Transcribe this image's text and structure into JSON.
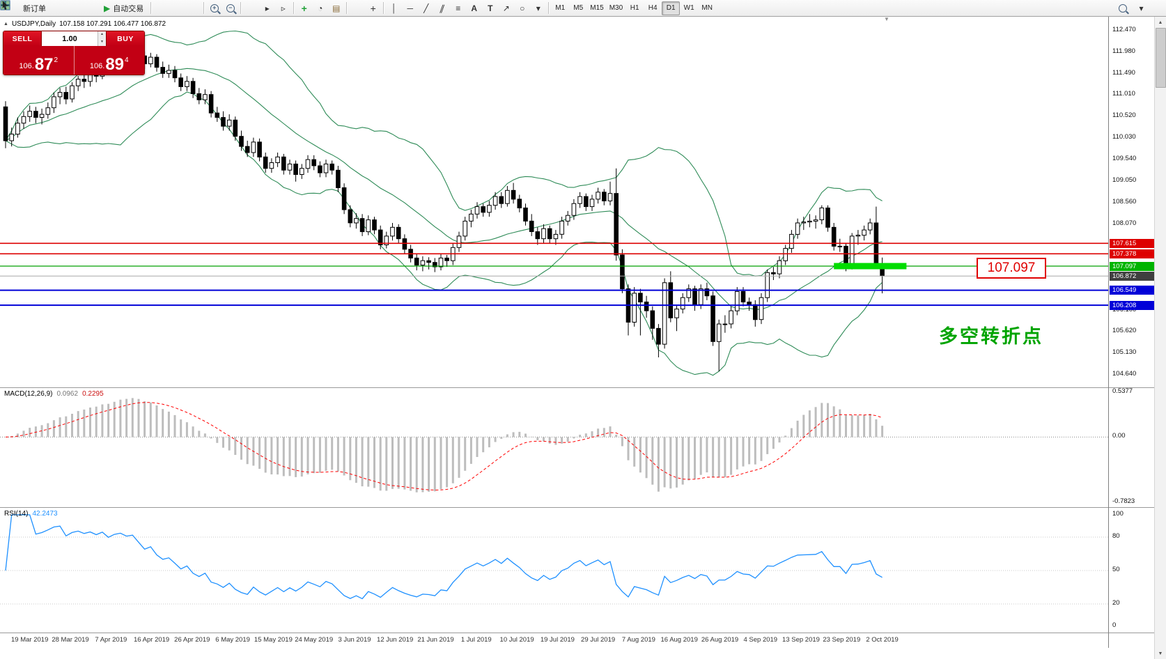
{
  "toolbar": {
    "new_order_label": "新订单",
    "autotrading_label": "自动交易",
    "timeframes": [
      "M1",
      "M5",
      "M15",
      "M30",
      "H1",
      "H4",
      "D1",
      "W1",
      "MN"
    ],
    "active_timeframe": "D1"
  },
  "icons": {
    "collapse_arrow": "▲",
    "autotrading_play": "▶",
    "spinner_up": "▲",
    "spinner_down": "▼",
    "scroll_up": "▲",
    "scroll_down": "▼",
    "shift_marker": "▼",
    "zoom_in": "+",
    "zoom_out": "−",
    "auto_scroll": "▸",
    "chart_shift": "▹",
    "indicators": "+",
    "periods": "◔",
    "templates": "▤",
    "crosshair": "+",
    "vline": "│",
    "hline": "─",
    "trendline": "╱",
    "channel": "∥",
    "fibonacci": "≡",
    "text": "A",
    "label": "T",
    "arrows": "↗",
    "shapes": "○",
    "dropdown": "▾"
  },
  "chart": {
    "header": "USDJPY,Daily",
    "ohlc": "107.158 107.291 106.477 106.872",
    "one_click": {
      "sell_label": "SELL",
      "buy_label": "BUY",
      "volume": "1.00",
      "sell_price": {
        "base": "106.",
        "big": "87",
        "sup": "2"
      },
      "buy_price": {
        "base": "106.",
        "big": "89",
        "sup": "4"
      }
    },
    "annotations": {
      "level_label": "107.097",
      "note": "多空转折点"
    }
  },
  "price_axis": {
    "gridlines": [
      {
        "label": "112.470",
        "price": 112.47
      },
      {
        "label": "111.980",
        "price": 111.98
      },
      {
        "label": "111.490",
        "price": 111.49
      },
      {
        "label": "111.010",
        "price": 111.01
      },
      {
        "label": "110.520",
        "price": 110.52
      },
      {
        "label": "110.030",
        "price": 110.03
      },
      {
        "label": "109.540",
        "price": 109.54
      },
      {
        "label": "109.050",
        "price": 109.05
      },
      {
        "label": "108.560",
        "price": 108.56
      },
      {
        "label": "108.070",
        "price": 108.07
      },
      {
        "label": "106.100",
        "price": 106.1
      },
      {
        "label": "105.620",
        "price": 105.62
      },
      {
        "label": "105.130",
        "price": 105.13
      },
      {
        "label": "104.640",
        "price": 104.64
      }
    ],
    "badges": [
      {
        "label": "107.615",
        "price": 107.615,
        "color": "#dd0000"
      },
      {
        "label": "107.378",
        "price": 107.378,
        "color": "#dd0000"
      },
      {
        "label": "107.097",
        "price": 107.097,
        "color": "#00b400"
      },
      {
        "label": "106.872",
        "price": 106.872,
        "color": "#3f3f3f"
      },
      {
        "label": "106.549",
        "price": 106.549,
        "color": "#0000d8"
      },
      {
        "label": "106.208",
        "price": 106.208,
        "color": "#0000d8"
      }
    ]
  },
  "macd": {
    "label": "MACD(12,26,9)",
    "value_main": "0.0962",
    "value_signal": "0.2295",
    "params": [
      12,
      26,
      9
    ],
    "axis": [
      {
        "label": "0.5377",
        "value": 0.5377
      },
      {
        "label": "0.00",
        "value": 0
      },
      {
        "label": "-0.7823",
        "value": -0.7823
      }
    ]
  },
  "rsi": {
    "label": "RSI(14)",
    "value": "42.2473",
    "params": [
      14
    ],
    "levels": [
      80,
      50,
      20
    ],
    "axis": [
      {
        "label": "100",
        "value": 100
      },
      {
        "label": "80",
        "value": 80
      },
      {
        "label": "50",
        "value": 50
      },
      {
        "label": "20",
        "value": 20
      },
      {
        "label": "0",
        "value": 0
      }
    ]
  },
  "time_axis": {
    "labels": [
      "19 Mar 2019",
      "28 Mar 2019",
      "7 Apr 2019",
      "16 Apr 2019",
      "26 Apr 2019",
      "6 May 2019",
      "15 May 2019",
      "24 May 2019",
      "3 Jun 2019",
      "12 Jun 2019",
      "21 Jun 2019",
      "1 Jul 2019",
      "10 Jul 2019",
      "19 Jul 2019",
      "29 Jul 2019",
      "7 Aug 2019",
      "16 Aug 2019",
      "26 Aug 2019",
      "4 Sep 2019",
      "13 Sep 2019",
      "23 Sep 2019",
      "2 Oct 2019"
    ]
  },
  "chart_data": {
    "type": "candlestick",
    "symbol": "USDJPY",
    "timeframe": "Daily",
    "current_bar": {
      "open": 107.158,
      "high": 107.291,
      "low": 106.477,
      "close": 106.872
    },
    "y_range": [
      104.64,
      112.47
    ],
    "overlays": {
      "bollinger": {
        "period": 20,
        "deviation": 2,
        "color": "#2e8b57"
      },
      "bid_line": 106.872,
      "hlines": [
        {
          "price": 107.615,
          "color": "#dd0000",
          "width": 1.6
        },
        {
          "price": 107.378,
          "color": "#dd0000",
          "width": 1.6
        },
        {
          "price": 107.097,
          "color": "#00a000",
          "width": 1.3
        },
        {
          "price": 106.549,
          "color": "#0000d8",
          "width": 2
        },
        {
          "price": 106.208,
          "color": "#0000d8",
          "width": 2
        }
      ],
      "highlight_segment": {
        "price": 107.097,
        "bar_from": 137,
        "bar_to": 149,
        "color": "#00dd00",
        "thickness": 9
      }
    },
    "candles": [
      [
        110.72,
        110.85,
        109.78,
        109.95
      ],
      [
        109.95,
        110.25,
        109.82,
        110.1
      ],
      [
        110.1,
        110.48,
        110.02,
        110.35
      ],
      [
        110.35,
        110.62,
        110.22,
        110.5
      ],
      [
        110.5,
        110.75,
        110.38,
        110.62
      ],
      [
        110.62,
        110.72,
        110.35,
        110.48
      ],
      [
        110.48,
        110.68,
        110.32,
        110.55
      ],
      [
        110.55,
        110.82,
        110.45,
        110.7
      ],
      [
        110.7,
        111.05,
        110.58,
        110.95
      ],
      [
        110.95,
        111.15,
        110.78,
        111.05
      ],
      [
        111.05,
        111.18,
        110.78,
        110.9
      ],
      [
        110.9,
        111.28,
        110.82,
        111.2
      ],
      [
        111.2,
        111.42,
        111.08,
        111.35
      ],
      [
        111.35,
        111.48,
        111.15,
        111.3
      ],
      [
        111.3,
        111.55,
        111.18,
        111.48
      ],
      [
        111.48,
        111.58,
        111.28,
        111.42
      ],
      [
        111.42,
        111.82,
        111.35,
        111.7
      ],
      [
        111.7,
        111.82,
        111.45,
        111.58
      ],
      [
        111.58,
        111.98,
        111.48,
        111.88
      ],
      [
        111.88,
        112.1,
        111.75,
        112.02
      ],
      [
        112.02,
        112.12,
        111.82,
        111.95
      ],
      [
        111.95,
        112.17,
        111.85,
        112.05
      ],
      [
        112.05,
        112.15,
        111.78,
        111.88
      ],
      [
        111.88,
        111.98,
        111.58,
        111.7
      ],
      [
        111.7,
        111.95,
        111.62,
        111.85
      ],
      [
        111.85,
        111.92,
        111.52,
        111.62
      ],
      [
        111.62,
        111.75,
        111.38,
        111.48
      ],
      [
        111.48,
        111.68,
        111.38,
        111.55
      ],
      [
        111.55,
        111.65,
        111.28,
        111.38
      ],
      [
        111.38,
        111.48,
        111.08,
        111.18
      ],
      [
        111.18,
        111.42,
        111.08,
        111.3
      ],
      [
        111.3,
        111.38,
        110.92,
        111.02
      ],
      [
        111.02,
        111.15,
        110.78,
        110.88
      ],
      [
        110.88,
        111.12,
        110.78,
        111.0
      ],
      [
        111.0,
        111.08,
        110.48,
        110.58
      ],
      [
        110.58,
        110.72,
        110.38,
        110.48
      ],
      [
        110.48,
        110.62,
        110.18,
        110.28
      ],
      [
        110.28,
        110.55,
        110.18,
        110.42
      ],
      [
        110.42,
        110.5,
        109.95,
        110.05
      ],
      [
        110.05,
        110.18,
        109.72,
        109.82
      ],
      [
        109.82,
        109.95,
        109.58,
        109.68
      ],
      [
        109.68,
        110.02,
        109.58,
        109.92
      ],
      [
        109.92,
        110.0,
        109.48,
        109.58
      ],
      [
        109.58,
        109.68,
        109.22,
        109.32
      ],
      [
        109.32,
        109.55,
        109.22,
        109.45
      ],
      [
        109.45,
        109.68,
        109.35,
        109.58
      ],
      [
        109.58,
        109.65,
        109.18,
        109.28
      ],
      [
        109.28,
        109.52,
        109.18,
        109.42
      ],
      [
        109.42,
        109.5,
        109.02,
        109.18
      ],
      [
        109.18,
        109.42,
        109.08,
        109.32
      ],
      [
        109.32,
        109.62,
        109.22,
        109.52
      ],
      [
        109.52,
        109.62,
        109.28,
        109.38
      ],
      [
        109.38,
        109.48,
        109.12,
        109.22
      ],
      [
        109.22,
        109.52,
        109.12,
        109.42
      ],
      [
        109.42,
        109.5,
        109.18,
        109.28
      ],
      [
        109.28,
        109.38,
        108.78,
        108.88
      ],
      [
        108.88,
        108.98,
        108.28,
        108.38
      ],
      [
        108.38,
        108.48,
        107.98,
        108.08
      ],
      [
        108.08,
        108.3,
        107.95,
        108.18
      ],
      [
        108.18,
        108.28,
        107.78,
        107.88
      ],
      [
        107.88,
        108.25,
        107.8,
        108.15
      ],
      [
        108.15,
        108.22,
        107.82,
        107.92
      ],
      [
        107.92,
        108.02,
        107.48,
        107.58
      ],
      [
        107.58,
        107.88,
        107.5,
        107.78
      ],
      [
        107.78,
        108.08,
        107.68,
        107.98
      ],
      [
        107.98,
        108.05,
        107.62,
        107.72
      ],
      [
        107.72,
        107.82,
        107.38,
        107.48
      ],
      [
        107.48,
        107.58,
        107.18,
        107.28
      ],
      [
        107.28,
        107.38,
        107.0,
        107.12
      ],
      [
        107.12,
        107.32,
        106.98,
        107.22
      ],
      [
        107.22,
        107.3,
        107.02,
        107.18
      ],
      [
        107.18,
        107.28,
        106.96,
        107.08
      ],
      [
        107.08,
        107.38,
        107.0,
        107.28
      ],
      [
        107.28,
        107.35,
        107.08,
        107.22
      ],
      [
        107.22,
        107.62,
        107.12,
        107.52
      ],
      [
        107.52,
        107.88,
        107.42,
        107.78
      ],
      [
        107.78,
        108.22,
        107.68,
        108.12
      ],
      [
        108.12,
        108.38,
        107.98,
        108.28
      ],
      [
        108.28,
        108.55,
        108.18,
        108.45
      ],
      [
        108.45,
        108.52,
        108.22,
        108.32
      ],
      [
        108.32,
        108.58,
        108.22,
        108.48
      ],
      [
        108.48,
        108.78,
        108.38,
        108.68
      ],
      [
        108.68,
        108.78,
        108.42,
        108.52
      ],
      [
        108.52,
        108.92,
        108.45,
        108.82
      ],
      [
        108.82,
        108.99,
        108.52,
        108.62
      ],
      [
        108.62,
        108.72,
        108.32,
        108.42
      ],
      [
        108.42,
        108.52,
        108.02,
        108.12
      ],
      [
        108.12,
        108.28,
        107.78,
        107.88
      ],
      [
        107.88,
        107.98,
        107.58,
        107.72
      ],
      [
        107.72,
        108.05,
        107.62,
        107.95
      ],
      [
        107.95,
        108.02,
        107.62,
        107.72
      ],
      [
        107.72,
        107.92,
        107.58,
        107.82
      ],
      [
        107.82,
        108.22,
        107.72,
        108.12
      ],
      [
        108.12,
        108.35,
        108.02,
        108.25
      ],
      [
        108.25,
        108.62,
        108.15,
        108.52
      ],
      [
        108.52,
        108.78,
        108.42,
        108.68
      ],
      [
        108.68,
        108.75,
        108.35,
        108.45
      ],
      [
        108.45,
        108.72,
        108.35,
        108.62
      ],
      [
        108.62,
        108.88,
        108.52,
        108.78
      ],
      [
        108.78,
        108.85,
        108.48,
        108.58
      ],
      [
        108.58,
        109.02,
        108.48,
        108.75
      ],
      [
        108.75,
        109.32,
        107.22,
        107.35
      ],
      [
        107.35,
        107.48,
        106.48,
        106.58
      ],
      [
        106.58,
        106.68,
        105.52,
        105.82
      ],
      [
        105.82,
        106.62,
        105.72,
        106.48
      ],
      [
        106.48,
        106.58,
        105.52,
        106.28
      ],
      [
        106.28,
        106.42,
        105.92,
        106.08
      ],
      [
        106.08,
        106.18,
        105.42,
        105.68
      ],
      [
        105.68,
        105.78,
        105.02,
        105.32
      ],
      [
        105.32,
        106.82,
        105.22,
        106.72
      ],
      [
        106.72,
        106.98,
        105.82,
        105.92
      ],
      [
        105.92,
        106.22,
        105.62,
        106.12
      ],
      [
        106.12,
        106.48,
        106.02,
        106.38
      ],
      [
        106.38,
        106.68,
        106.28,
        106.58
      ],
      [
        106.58,
        106.65,
        106.08,
        106.22
      ],
      [
        106.22,
        106.68,
        106.12,
        106.58
      ],
      [
        106.58,
        106.72,
        106.32,
        106.42
      ],
      [
        106.42,
        106.52,
        105.28,
        105.38
      ],
      [
        105.38,
        105.88,
        104.7,
        105.78
      ],
      [
        105.78,
        105.98,
        105.58,
        105.78
      ],
      [
        105.78,
        106.18,
        105.68,
        106.08
      ],
      [
        106.08,
        106.62,
        105.98,
        106.52
      ],
      [
        106.52,
        106.62,
        106.18,
        106.28
      ],
      [
        106.28,
        106.38,
        106.08,
        106.22
      ],
      [
        106.22,
        106.32,
        105.72,
        105.88
      ],
      [
        105.88,
        106.48,
        105.78,
        106.38
      ],
      [
        106.38,
        107.02,
        106.28,
        106.95
      ],
      [
        106.95,
        107.08,
        106.78,
        106.92
      ],
      [
        106.92,
        107.32,
        106.82,
        107.22
      ],
      [
        107.22,
        107.58,
        107.12,
        107.5
      ],
      [
        107.5,
        107.92,
        107.4,
        107.82
      ],
      [
        107.82,
        108.18,
        107.72,
        108.08
      ],
      [
        108.08,
        108.22,
        107.92,
        108.1
      ],
      [
        108.1,
        108.28,
        107.98,
        108.12
      ],
      [
        108.12,
        108.25,
        107.95,
        108.15
      ],
      [
        108.15,
        108.48,
        108.05,
        108.42
      ],
      [
        108.42,
        108.48,
        107.88,
        107.98
      ],
      [
        107.98,
        108.08,
        107.45,
        107.55
      ],
      [
        107.55,
        107.72,
        107.42,
        107.55
      ],
      [
        107.55,
        107.62,
        106.98,
        107.08
      ],
      [
        107.08,
        107.85,
        107.02,
        107.78
      ],
      [
        107.78,
        107.92,
        107.58,
        107.8
      ],
      [
        107.8,
        108.02,
        107.68,
        107.92
      ],
      [
        107.92,
        108.18,
        107.82,
        108.08
      ],
      [
        108.08,
        108.45,
        107.05,
        107.16
      ],
      [
        107.158,
        107.291,
        106.477,
        106.872
      ]
    ]
  }
}
